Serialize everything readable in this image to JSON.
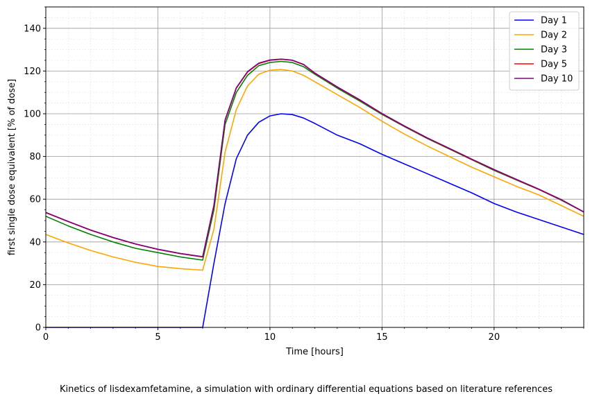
{
  "caption": "Kinetics of lisdexamfetamine, a simulation with ordinary differential equations based on literature references",
  "chart_data": {
    "type": "line",
    "xlabel": "Time [hours]",
    "ylabel": "first single dose equivalent [% of dose]",
    "xlim": [
      0,
      24
    ],
    "ylim": [
      0,
      150
    ],
    "xticks": [
      0,
      5,
      10,
      15,
      20
    ],
    "yticks": [
      0,
      20,
      40,
      60,
      80,
      100,
      120,
      140
    ],
    "grid": "major and minor",
    "legend_position": "top-right",
    "x": [
      0,
      1,
      2,
      3,
      4,
      5,
      6,
      7,
      7.5,
      8,
      8.5,
      9,
      9.5,
      10,
      10.5,
      11,
      11.5,
      12,
      13,
      14,
      15,
      16,
      17,
      18,
      19,
      20,
      21,
      22,
      23,
      24
    ],
    "series": [
      {
        "name": "Day 1",
        "color": "#0000ff",
        "values": [
          0,
          0,
          0,
          0,
          0,
          0,
          0,
          0,
          30,
          58,
          79,
          90,
          96,
          99,
          100,
          99.6,
          98,
          95.5,
          90,
          86,
          81,
          76.5,
          72,
          67.5,
          63,
          58,
          54,
          50.5,
          47,
          43.5
        ]
      },
      {
        "name": "Day 2",
        "color": "#ffa500",
        "values": [
          43.5,
          39.5,
          36,
          33,
          30.5,
          28.5,
          27.5,
          26.8,
          46,
          82,
          102,
          113,
          118.5,
          120.4,
          120.7,
          120,
          118,
          115,
          109,
          103,
          96.5,
          90.5,
          85,
          80,
          75,
          70.5,
          66,
          62,
          57,
          52
        ]
      },
      {
        "name": "Day 3",
        "color": "#008000",
        "values": [
          52,
          47.5,
          43.5,
          40,
          37,
          35,
          33,
          31.5,
          55,
          95,
          110,
          118,
          122.5,
          124,
          124.5,
          124,
          122,
          118.5,
          112,
          106,
          99.7,
          94,
          88.5,
          83.5,
          78.5,
          73.5,
          69,
          64.5,
          59.5,
          54
        ]
      },
      {
        "name": "Day 5",
        "color": "#ff0000",
        "values": [
          53.7,
          49.5,
          45.5,
          42,
          39,
          36.5,
          34.5,
          33,
          57,
          97,
          112,
          119.5,
          123.5,
          125,
          125.5,
          125,
          123,
          119,
          112.5,
          106.5,
          100,
          94.2,
          88.7,
          83.7,
          78.7,
          73.8,
          69.2,
          64.6,
          59.7,
          54
        ]
      },
      {
        "name": "Day 10",
        "color": "#800080",
        "values": [
          53.8,
          49.6,
          45.6,
          42.1,
          39.1,
          36.6,
          34.6,
          33.1,
          57.2,
          97.2,
          112.2,
          119.7,
          123.7,
          125.2,
          125.6,
          125.1,
          123.1,
          119.1,
          112.6,
          106.6,
          100.1,
          94.3,
          88.8,
          83.8,
          78.8,
          73.9,
          69.3,
          64.7,
          59.8,
          54.1
        ]
      }
    ]
  }
}
